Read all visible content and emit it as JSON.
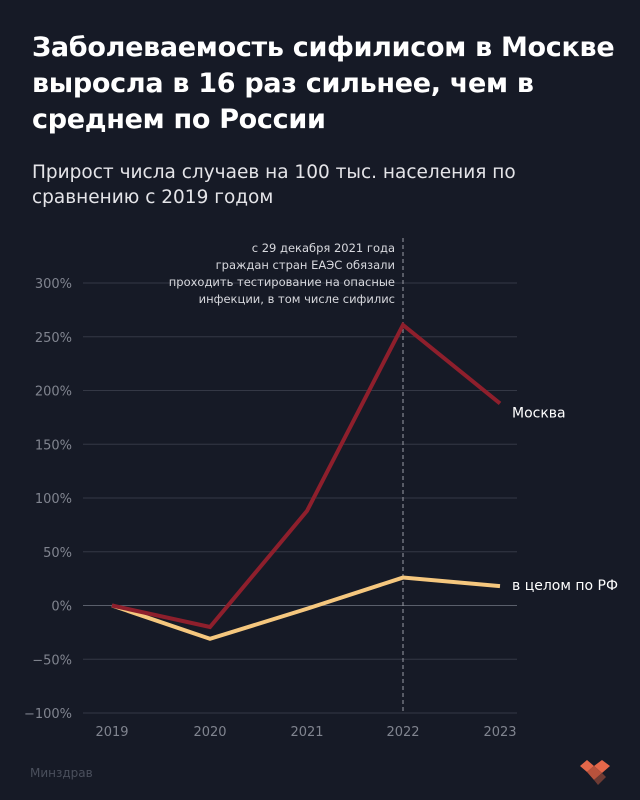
{
  "title": "Заболеваемость сифилисом в Москве выросла в 16 раз сильнее, чем в среднем по России",
  "subtitle": "Прирост числа случаев на 100 тыс. населения по сравнению с 2019 годом",
  "source": "Минздрав",
  "chart_data": {
    "type": "line",
    "x": [
      "2019",
      "2020",
      "2021",
      "2022",
      "2023"
    ],
    "ylim": [
      -100,
      300
    ],
    "yticks": [
      "300%",
      "250%",
      "200%",
      "150%",
      "100%",
      "50%",
      "0%",
      "−50%",
      "−100%"
    ],
    "ytick_values": [
      300,
      250,
      200,
      150,
      100,
      50,
      0,
      -50,
      -100
    ],
    "grid": true,
    "series": [
      {
        "name": "Москва",
        "values": [
          0,
          -20,
          88,
          261,
          188
        ],
        "color": "#8e1f2c"
      },
      {
        "name": "в целом по РФ",
        "values": [
          0,
          -31,
          -3,
          26,
          18
        ],
        "color": "#f5c77e"
      }
    ],
    "annotation": {
      "x": "2022",
      "lines": [
        "с 29 декабря 2021 года",
        "граждан стран ЕАЭС обязали",
        "проходить тестирование на опасные",
        "инфекции, в том числе сифилис"
      ]
    }
  }
}
